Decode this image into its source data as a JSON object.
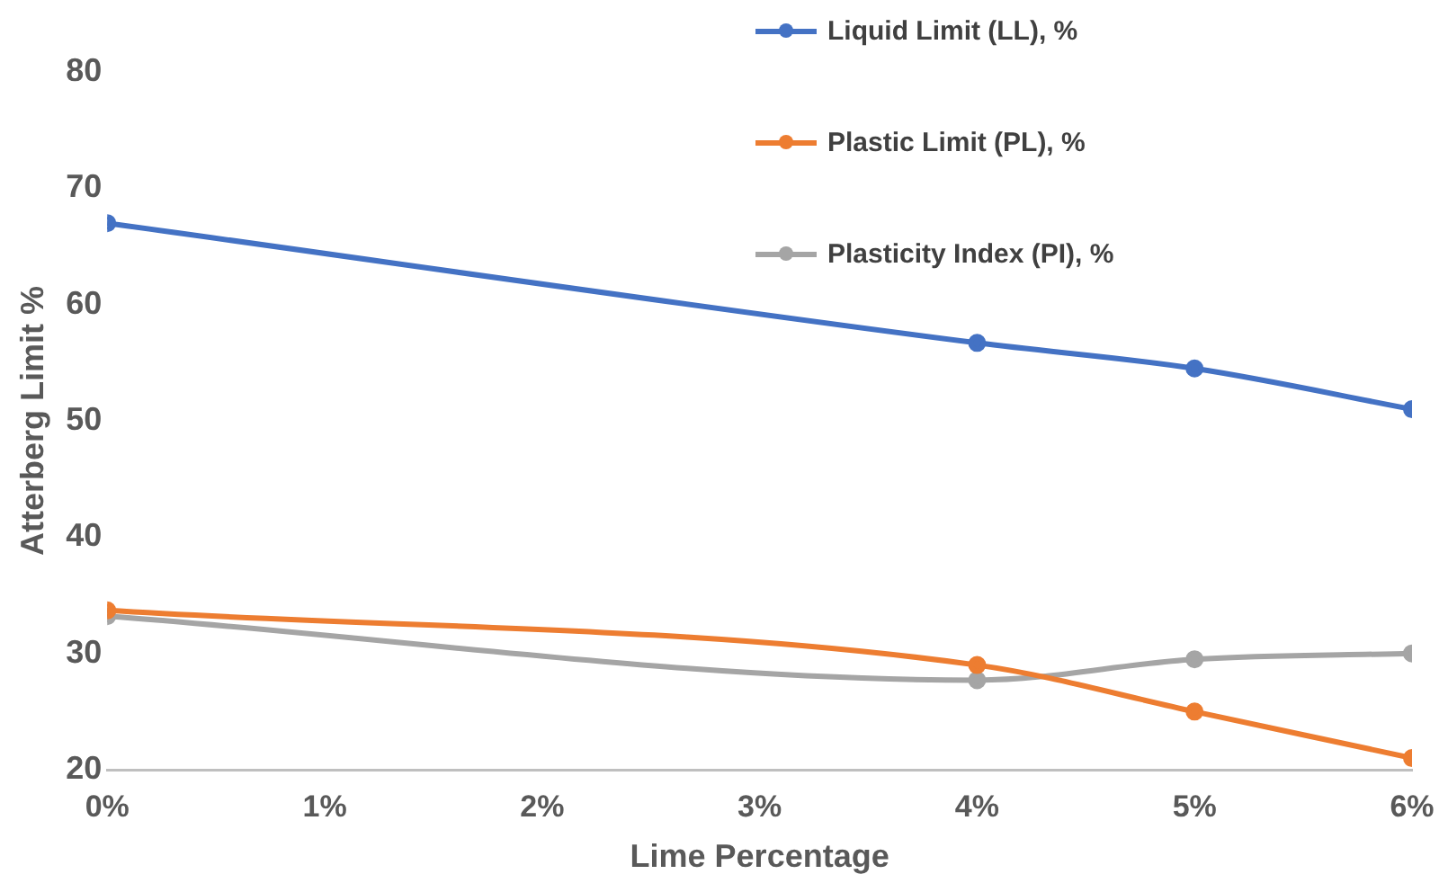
{
  "chart_data": {
    "type": "line",
    "xlabel": "Lime Percentage",
    "ylabel": "Atterberg Limit %",
    "x": [
      0,
      4,
      5,
      6
    ],
    "xlim": [
      0,
      6
    ],
    "xticks": [
      {
        "value": 0,
        "label": "0%"
      },
      {
        "value": 1,
        "label": "1%"
      },
      {
        "value": 2,
        "label": "2%"
      },
      {
        "value": 3,
        "label": "3%"
      },
      {
        "value": 4,
        "label": "4%"
      },
      {
        "value": 5,
        "label": "5%"
      },
      {
        "value": 6,
        "label": "6%"
      }
    ],
    "ylim": [
      20,
      80
    ],
    "yticks": [
      20,
      30,
      40,
      50,
      60,
      70,
      80
    ],
    "grid": false,
    "legend": "top right",
    "marker": "circle",
    "line_style": "solid",
    "series": [
      {
        "name": "Liquid Limit (LL), %",
        "color": "#4472c4",
        "values": [
          67,
          56.7,
          54.5,
          51
        ]
      },
      {
        "name": "Plastic Limit (PL), %",
        "color": "#ed7d31",
        "values": [
          33.7,
          29,
          25,
          21
        ]
      },
      {
        "name": "Plasticity Index (PI), %",
        "color": "#a5a5a5",
        "values": [
          33.2,
          27.7,
          29.5,
          30
        ]
      }
    ]
  }
}
